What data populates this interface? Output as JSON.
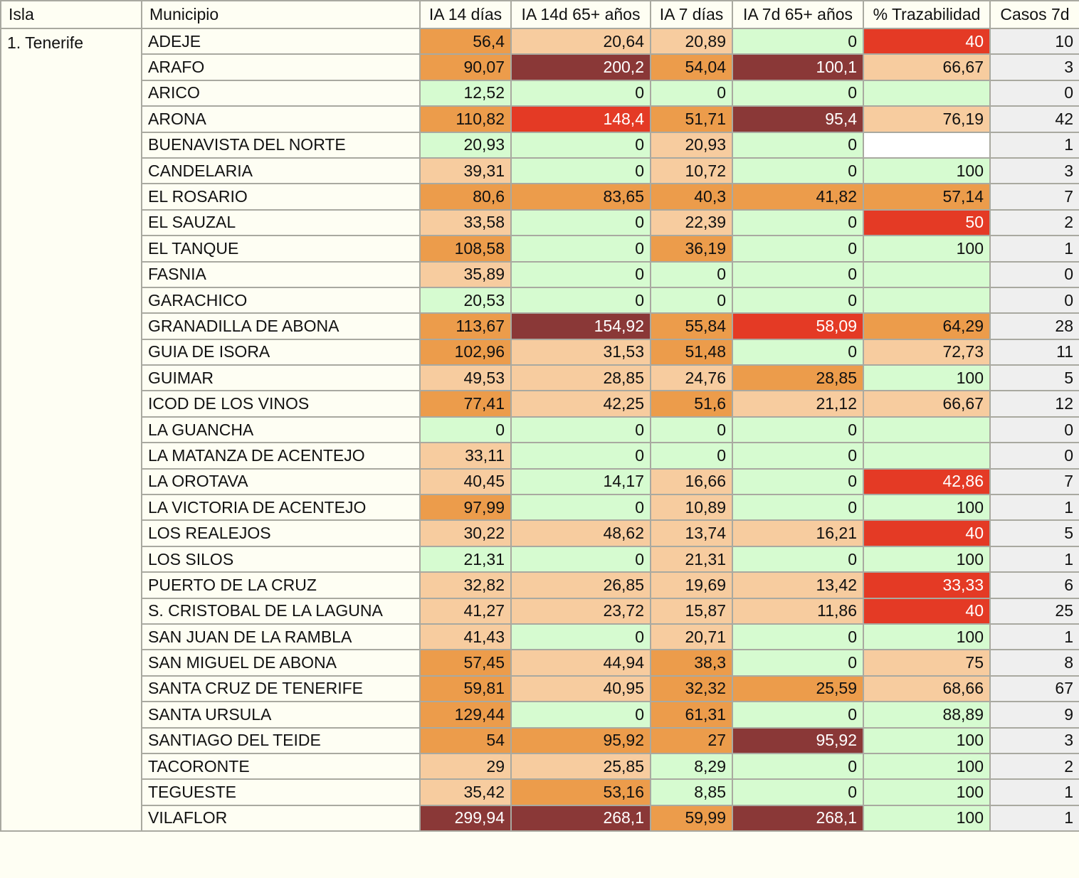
{
  "colors": {
    "g": "#d6fbd0",
    "lo": "#f7cc9f",
    "or": "#ec9c4b",
    "rd": "#e43a25",
    "dr": "#8a3837",
    "wh": "#ffffff",
    "casos": "#efefef"
  },
  "headers": [
    "Isla",
    "Municipio",
    "IA 14 días",
    "IA 14d 65+ años",
    "IA 7 días",
    "IA 7d 65+ años",
    "% Trazabilidad",
    "Casos 7d"
  ],
  "isla": "1. Tenerife",
  "rows": [
    {
      "m": "ADEJE",
      "v": [
        [
          "56,4",
          "or"
        ],
        [
          "20,64",
          "lo"
        ],
        [
          "20,89",
          "lo"
        ],
        [
          "0",
          "g"
        ],
        [
          "40",
          "rd"
        ]
      ],
      "c": "10"
    },
    {
      "m": "ARAFO",
      "v": [
        [
          "90,07",
          "or"
        ],
        [
          "200,2",
          "dr"
        ],
        [
          "54,04",
          "or"
        ],
        [
          "100,1",
          "dr"
        ],
        [
          "66,67",
          "lo"
        ]
      ],
      "c": "3"
    },
    {
      "m": "ARICO",
      "v": [
        [
          "12,52",
          "g"
        ],
        [
          "0",
          "g"
        ],
        [
          "0",
          "g"
        ],
        [
          "0",
          "g"
        ],
        [
          "",
          "g"
        ]
      ],
      "c": "0"
    },
    {
      "m": "ARONA",
      "v": [
        [
          "110,82",
          "or"
        ],
        [
          "148,4",
          "rd"
        ],
        [
          "51,71",
          "or"
        ],
        [
          "95,4",
          "dr"
        ],
        [
          "76,19",
          "lo"
        ]
      ],
      "c": "42"
    },
    {
      "m": "BUENAVISTA DEL NORTE",
      "v": [
        [
          "20,93",
          "g"
        ],
        [
          "0",
          "g"
        ],
        [
          "20,93",
          "lo"
        ],
        [
          "0",
          "g"
        ],
        [
          "",
          "wh"
        ]
      ],
      "c": "1"
    },
    {
      "m": "CANDELARIA",
      "v": [
        [
          "39,31",
          "lo"
        ],
        [
          "0",
          "g"
        ],
        [
          "10,72",
          "lo"
        ],
        [
          "0",
          "g"
        ],
        [
          "100",
          "g"
        ]
      ],
      "c": "3"
    },
    {
      "m": "EL ROSARIO",
      "v": [
        [
          "80,6",
          "or"
        ],
        [
          "83,65",
          "or"
        ],
        [
          "40,3",
          "or"
        ],
        [
          "41,82",
          "or"
        ],
        [
          "57,14",
          "or"
        ]
      ],
      "c": "7"
    },
    {
      "m": "EL SAUZAL",
      "v": [
        [
          "33,58",
          "lo"
        ],
        [
          "0",
          "g"
        ],
        [
          "22,39",
          "lo"
        ],
        [
          "0",
          "g"
        ],
        [
          "50",
          "rd"
        ]
      ],
      "c": "2"
    },
    {
      "m": "EL TANQUE",
      "v": [
        [
          "108,58",
          "or"
        ],
        [
          "0",
          "g"
        ],
        [
          "36,19",
          "or"
        ],
        [
          "0",
          "g"
        ],
        [
          "100",
          "g"
        ]
      ],
      "c": "1"
    },
    {
      "m": "FASNIA",
      "v": [
        [
          "35,89",
          "lo"
        ],
        [
          "0",
          "g"
        ],
        [
          "0",
          "g"
        ],
        [
          "0",
          "g"
        ],
        [
          "",
          "g"
        ]
      ],
      "c": "0"
    },
    {
      "m": "GARACHICO",
      "v": [
        [
          "20,53",
          "g"
        ],
        [
          "0",
          "g"
        ],
        [
          "0",
          "g"
        ],
        [
          "0",
          "g"
        ],
        [
          "",
          "g"
        ]
      ],
      "c": "0"
    },
    {
      "m": "GRANADILLA DE ABONA",
      "v": [
        [
          "113,67",
          "or"
        ],
        [
          "154,92",
          "dr"
        ],
        [
          "55,84",
          "or"
        ],
        [
          "58,09",
          "rd"
        ],
        [
          "64,29",
          "or"
        ]
      ],
      "c": "28"
    },
    {
      "m": "GUIA DE ISORA",
      "v": [
        [
          "102,96",
          "or"
        ],
        [
          "31,53",
          "lo"
        ],
        [
          "51,48",
          "or"
        ],
        [
          "0",
          "g"
        ],
        [
          "72,73",
          "lo"
        ]
      ],
      "c": "11"
    },
    {
      "m": "GUIMAR",
      "v": [
        [
          "49,53",
          "lo"
        ],
        [
          "28,85",
          "lo"
        ],
        [
          "24,76",
          "lo"
        ],
        [
          "28,85",
          "or"
        ],
        [
          "100",
          "g"
        ]
      ],
      "c": "5"
    },
    {
      "m": "ICOD DE LOS VINOS",
      "v": [
        [
          "77,41",
          "or"
        ],
        [
          "42,25",
          "lo"
        ],
        [
          "51,6",
          "or"
        ],
        [
          "21,12",
          "lo"
        ],
        [
          "66,67",
          "lo"
        ]
      ],
      "c": "12"
    },
    {
      "m": "LA GUANCHA",
      "v": [
        [
          "0",
          "g"
        ],
        [
          "0",
          "g"
        ],
        [
          "0",
          "g"
        ],
        [
          "0",
          "g"
        ],
        [
          "",
          "g"
        ]
      ],
      "c": "0"
    },
    {
      "m": "LA MATANZA DE ACENTEJO",
      "v": [
        [
          "33,11",
          "lo"
        ],
        [
          "0",
          "g"
        ],
        [
          "0",
          "g"
        ],
        [
          "0",
          "g"
        ],
        [
          "",
          "g"
        ]
      ],
      "c": "0"
    },
    {
      "m": "LA OROTAVA",
      "v": [
        [
          "40,45",
          "lo"
        ],
        [
          "14,17",
          "g"
        ],
        [
          "16,66",
          "lo"
        ],
        [
          "0",
          "g"
        ],
        [
          "42,86",
          "rd"
        ]
      ],
      "c": "7"
    },
    {
      "m": "LA VICTORIA DE ACENTEJO",
      "v": [
        [
          "97,99",
          "or"
        ],
        [
          "0",
          "g"
        ],
        [
          "10,89",
          "lo"
        ],
        [
          "0",
          "g"
        ],
        [
          "100",
          "g"
        ]
      ],
      "c": "1"
    },
    {
      "m": "LOS REALEJOS",
      "v": [
        [
          "30,22",
          "lo"
        ],
        [
          "48,62",
          "lo"
        ],
        [
          "13,74",
          "lo"
        ],
        [
          "16,21",
          "lo"
        ],
        [
          "40",
          "rd"
        ]
      ],
      "c": "5"
    },
    {
      "m": "LOS SILOS",
      "v": [
        [
          "21,31",
          "g"
        ],
        [
          "0",
          "g"
        ],
        [
          "21,31",
          "lo"
        ],
        [
          "0",
          "g"
        ],
        [
          "100",
          "g"
        ]
      ],
      "c": "1"
    },
    {
      "m": "PUERTO DE LA CRUZ",
      "v": [
        [
          "32,82",
          "lo"
        ],
        [
          "26,85",
          "lo"
        ],
        [
          "19,69",
          "lo"
        ],
        [
          "13,42",
          "lo"
        ],
        [
          "33,33",
          "rd"
        ]
      ],
      "c": "6"
    },
    {
      "m": "S. CRISTOBAL DE LA LAGUNA",
      "v": [
        [
          "41,27",
          "lo"
        ],
        [
          "23,72",
          "lo"
        ],
        [
          "15,87",
          "lo"
        ],
        [
          "11,86",
          "lo"
        ],
        [
          "40",
          "rd"
        ]
      ],
      "c": "25"
    },
    {
      "m": "SAN JUAN DE LA RAMBLA",
      "v": [
        [
          "41,43",
          "lo"
        ],
        [
          "0",
          "g"
        ],
        [
          "20,71",
          "lo"
        ],
        [
          "0",
          "g"
        ],
        [
          "100",
          "g"
        ]
      ],
      "c": "1"
    },
    {
      "m": "SAN MIGUEL DE ABONA",
      "v": [
        [
          "57,45",
          "or"
        ],
        [
          "44,94",
          "lo"
        ],
        [
          "38,3",
          "or"
        ],
        [
          "0",
          "g"
        ],
        [
          "75",
          "lo"
        ]
      ],
      "c": "8"
    },
    {
      "m": "SANTA CRUZ DE TENERIFE",
      "v": [
        [
          "59,81",
          "or"
        ],
        [
          "40,95",
          "lo"
        ],
        [
          "32,32",
          "or"
        ],
        [
          "25,59",
          "or"
        ],
        [
          "68,66",
          "lo"
        ]
      ],
      "c": "67"
    },
    {
      "m": "SANTA URSULA",
      "v": [
        [
          "129,44",
          "or"
        ],
        [
          "0",
          "g"
        ],
        [
          "61,31",
          "or"
        ],
        [
          "0",
          "g"
        ],
        [
          "88,89",
          "g"
        ]
      ],
      "c": "9"
    },
    {
      "m": "SANTIAGO DEL TEIDE",
      "v": [
        [
          "54",
          "or"
        ],
        [
          "95,92",
          "or"
        ],
        [
          "27",
          "or"
        ],
        [
          "95,92",
          "dr"
        ],
        [
          "100",
          "g"
        ]
      ],
      "c": "3"
    },
    {
      "m": "TACORONTE",
      "v": [
        [
          "29",
          "lo"
        ],
        [
          "25,85",
          "lo"
        ],
        [
          "8,29",
          "g"
        ],
        [
          "0",
          "g"
        ],
        [
          "100",
          "g"
        ]
      ],
      "c": "2"
    },
    {
      "m": "TEGUESTE",
      "v": [
        [
          "35,42",
          "lo"
        ],
        [
          "53,16",
          "or"
        ],
        [
          "8,85",
          "g"
        ],
        [
          "0",
          "g"
        ],
        [
          "100",
          "g"
        ]
      ],
      "c": "1"
    },
    {
      "m": "VILAFLOR",
      "v": [
        [
          "299,94",
          "dr"
        ],
        [
          "268,1",
          "dr"
        ],
        [
          "59,99",
          "or"
        ],
        [
          "268,1",
          "dr"
        ],
        [
          "100",
          "g"
        ]
      ],
      "c": "1"
    }
  ]
}
